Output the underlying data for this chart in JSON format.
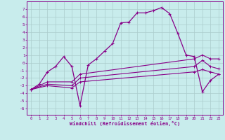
{
  "xlabel": "Windchill (Refroidissement éolien,°C)",
  "bg_color": "#c8ecec",
  "line_color": "#880088",
  "grid_color": "#aacccc",
  "x_ticks": [
    0,
    1,
    2,
    3,
    4,
    5,
    6,
    7,
    8,
    9,
    10,
    11,
    12,
    13,
    14,
    15,
    16,
    17,
    18,
    19,
    20,
    21,
    22,
    23
  ],
  "y_ticks": [
    -6,
    -5,
    -4,
    -3,
    -2,
    -1,
    0,
    1,
    2,
    3,
    4,
    5,
    6,
    7
  ],
  "ylim": [
    -6.8,
    8.0
  ],
  "xlim": [
    -0.5,
    23.5
  ],
  "main_x": [
    0,
    1,
    2,
    3,
    4,
    5,
    6,
    7,
    8,
    9,
    10,
    11,
    12,
    13,
    14,
    15,
    16,
    17,
    18,
    19,
    20,
    21,
    22,
    23
  ],
  "main_y": [
    -3.5,
    -2.8,
    -1.2,
    -0.5,
    0.8,
    -0.5,
    -5.6,
    -0.3,
    0.5,
    1.5,
    2.5,
    5.2,
    5.3,
    6.5,
    6.5,
    6.8,
    7.2,
    6.4,
    3.8,
    1.0,
    0.8,
    -3.8,
    -2.3,
    -1.5
  ],
  "t1_x": [
    0,
    2,
    5,
    6,
    20,
    21,
    22,
    23
  ],
  "t1_y": [
    -3.5,
    -3.0,
    -3.3,
    -2.5,
    -1.2,
    -0.9,
    -1.2,
    -1.5
  ],
  "t2_x": [
    0,
    2,
    5,
    6,
    20,
    21,
    22,
    23
  ],
  "t2_y": [
    -3.5,
    -2.8,
    -3.0,
    -2.0,
    -0.5,
    0.3,
    -0.5,
    -0.8
  ],
  "t3_x": [
    0,
    2,
    5,
    6,
    20,
    21,
    22,
    23
  ],
  "t3_y": [
    -3.5,
    -2.5,
    -2.5,
    -1.5,
    0.5,
    1.0,
    0.5,
    0.5
  ]
}
